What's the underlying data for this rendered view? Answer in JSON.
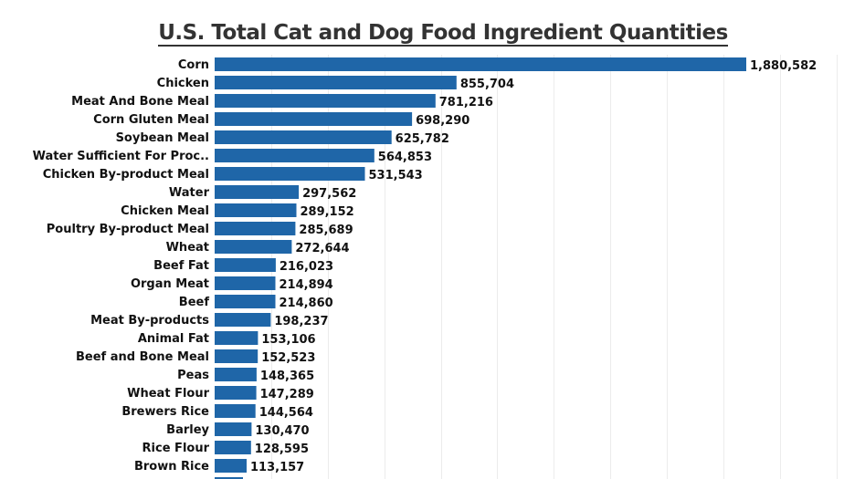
{
  "chart_data": {
    "type": "bar",
    "orientation": "horizontal",
    "title": "U.S. Total Cat and Dog Food Ingredient Quantities",
    "xlabel": "",
    "ylabel": "",
    "xlim": [
      0,
      2200000
    ],
    "grid": true,
    "grid_step": 200000,
    "bar_color": "#1f66a8",
    "categories": [
      "Corn",
      "Chicken",
      "Meat And Bone Meal",
      "Corn Gluten Meal",
      "Soybean Meal",
      "Water Sufficient For Proc..",
      "Chicken By-product Meal",
      "Water",
      "Chicken Meal",
      "Poultry By-product Meal",
      "Wheat",
      "Beef Fat",
      "Organ Meat",
      "Beef",
      "Meat By-products",
      "Animal Fat",
      "Beef and Bone Meal",
      "Peas",
      "Wheat Flour",
      "Brewers Rice",
      "Barley",
      "Rice Flour",
      "Brown Rice"
    ],
    "values": [
      1880582,
      855704,
      781216,
      698290,
      625782,
      564853,
      531543,
      297562,
      289152,
      285689,
      272644,
      216023,
      214894,
      214860,
      198237,
      153106,
      152523,
      148365,
      147289,
      144564,
      130470,
      128595,
      113157
    ],
    "value_labels": [
      "1,880,582",
      "855,704",
      "781,216",
      "698,290",
      "625,782",
      "564,853",
      "531,543",
      "297,562",
      "289,152",
      "285,689",
      "272,644",
      "216,023",
      "214,894",
      "214,860",
      "198,237",
      "153,106",
      "152,523",
      "148,365",
      "147,289",
      "144,564",
      "130,470",
      "128,595",
      "113,157"
    ]
  }
}
